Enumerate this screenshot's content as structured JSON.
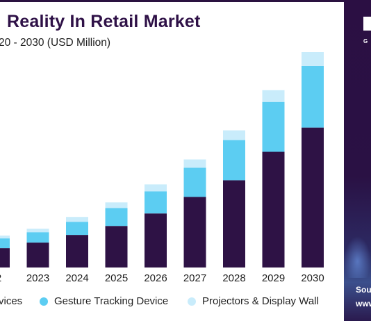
{
  "header": {
    "title": "Reality In Retail Market",
    "subtitle": "20 - 2030 (USD Million)"
  },
  "side_panel": {
    "logo_text": "G",
    "source_text": "Sou",
    "url_text": "www"
  },
  "colors": {
    "series_dark": "#2e1245",
    "series_mid": "#5ccdf2",
    "series_light": "#c9ecfb",
    "title": "#2f1147",
    "side_panel": "#2b0f43"
  },
  "chart_data": {
    "type": "bar",
    "stacked": true,
    "categories": [
      "2",
      "2023",
      "2024",
      "2025",
      "2026",
      "2027",
      "2028",
      "2029",
      "2030"
    ],
    "series": [
      {
        "name": "vices",
        "values": [
          28,
          36,
          47,
          60,
          78,
          102,
          126,
          167,
          202
        ]
      },
      {
        "name": "Gesture Tracking Device",
        "values": [
          14,
          15,
          19,
          26,
          32,
          42,
          58,
          72,
          89
        ]
      },
      {
        "name": "Projectors & Display Wall",
        "values": [
          4,
          5,
          7,
          8,
          10,
          12,
          14,
          17,
          20
        ]
      }
    ],
    "ylim": [
      0,
      320
    ],
    "grid": false,
    "legend_position": "bottom",
    "xlabel": "",
    "ylabel": ""
  }
}
